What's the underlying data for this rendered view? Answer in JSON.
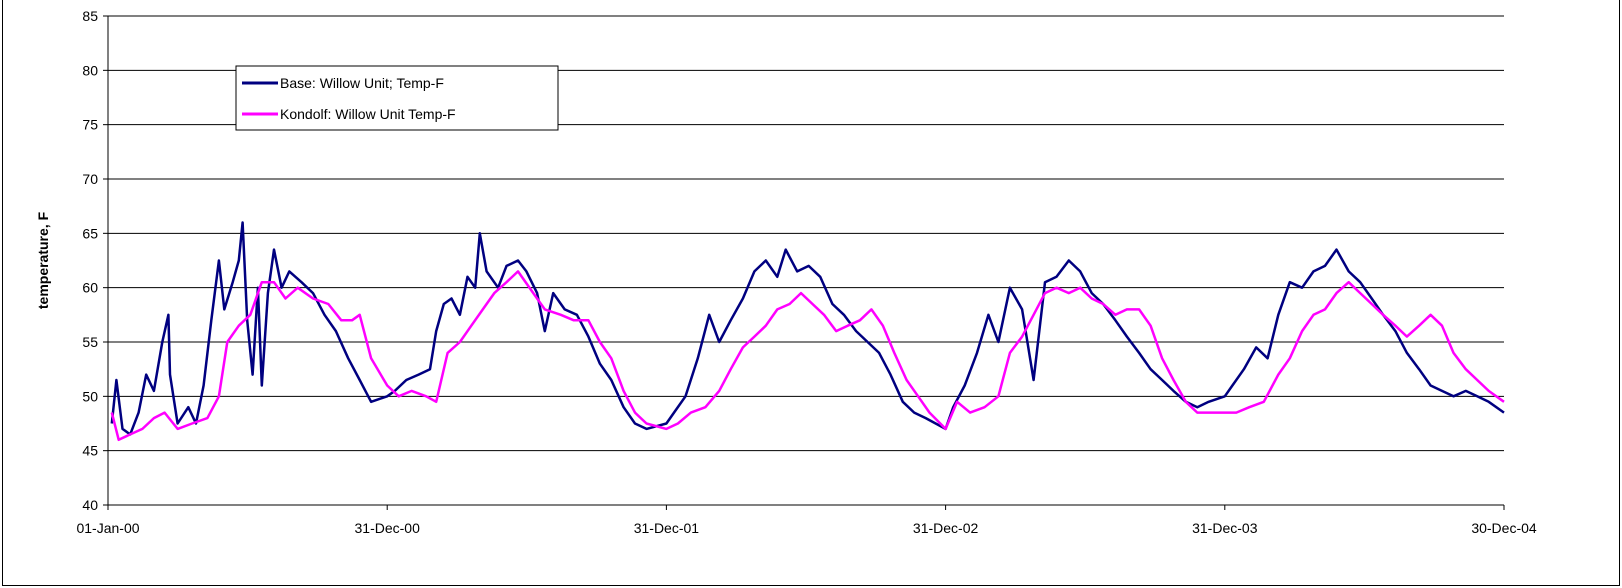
{
  "chart_data": {
    "type": "line",
    "title": "",
    "xlabel": "",
    "ylabel": "temperature, F",
    "ylim": [
      40,
      85
    ],
    "yticks": [
      40,
      45,
      50,
      55,
      60,
      65,
      70,
      75,
      80,
      85
    ],
    "xlim": [
      "2000-01-01",
      "2004-12-30"
    ],
    "xticks": [
      {
        "date": "2000-01-01",
        "label": "01-Jan-00"
      },
      {
        "date": "2000-12-31",
        "label": "31-Dec-00"
      },
      {
        "date": "2001-12-31",
        "label": "31-Dec-01"
      },
      {
        "date": "2002-12-31",
        "label": "31-Dec-02"
      },
      {
        "date": "2003-12-31",
        "label": "31-Dec-03"
      },
      {
        "date": "2004-12-30",
        "label": "30-Dec-04"
      }
    ],
    "grid": "horizontal",
    "legend_position": "top-left",
    "series": [
      {
        "name": "Base:  Willow Unit; Temp-F",
        "color": "#000080",
        "points": [
          [
            "2000-01-06",
            47.5
          ],
          [
            "2000-01-12",
            51.5
          ],
          [
            "2000-01-20",
            47.0
          ],
          [
            "2000-01-30",
            46.5
          ],
          [
            "2000-02-10",
            48.5
          ],
          [
            "2000-02-20",
            52.0
          ],
          [
            "2000-03-01",
            50.5
          ],
          [
            "2000-03-12",
            55.0
          ],
          [
            "2000-03-20",
            57.5
          ],
          [
            "2000-03-22",
            52.0
          ],
          [
            "2000-04-01",
            47.5
          ],
          [
            "2000-04-15",
            49.0
          ],
          [
            "2000-04-25",
            47.5
          ],
          [
            "2000-05-05",
            51.0
          ],
          [
            "2000-05-15",
            57.0
          ],
          [
            "2000-05-25",
            62.5
          ],
          [
            "2000-06-01",
            58.0
          ],
          [
            "2000-06-12",
            60.5
          ],
          [
            "2000-06-20",
            62.5
          ],
          [
            "2000-06-25",
            66.0
          ],
          [
            "2000-07-01",
            57.0
          ],
          [
            "2000-07-08",
            52.0
          ],
          [
            "2000-07-15",
            60.0
          ],
          [
            "2000-07-20",
            51.0
          ],
          [
            "2000-07-28",
            59.5
          ],
          [
            "2000-08-05",
            63.5
          ],
          [
            "2000-08-15",
            60.0
          ],
          [
            "2000-08-25",
            61.5
          ],
          [
            "2000-09-10",
            60.5
          ],
          [
            "2000-09-25",
            59.5
          ],
          [
            "2000-10-10",
            57.5
          ],
          [
            "2000-10-25",
            56.0
          ],
          [
            "2000-11-10",
            53.5
          ],
          [
            "2000-11-25",
            51.5
          ],
          [
            "2000-12-10",
            49.5
          ],
          [
            "2000-12-31",
            50.0
          ],
          [
            "2001-01-10",
            50.5
          ],
          [
            "2001-01-25",
            51.5
          ],
          [
            "2001-02-10",
            52.0
          ],
          [
            "2001-02-25",
            52.5
          ],
          [
            "2001-03-05",
            56.0
          ],
          [
            "2001-03-15",
            58.5
          ],
          [
            "2001-03-25",
            59.0
          ],
          [
            "2001-04-05",
            57.5
          ],
          [
            "2001-04-15",
            61.0
          ],
          [
            "2001-04-25",
            60.0
          ],
          [
            "2001-05-01",
            65.0
          ],
          [
            "2001-05-10",
            61.5
          ],
          [
            "2001-05-25",
            60.0
          ],
          [
            "2001-06-05",
            62.0
          ],
          [
            "2001-06-20",
            62.5
          ],
          [
            "2001-07-01",
            61.5
          ],
          [
            "2001-07-15",
            59.5
          ],
          [
            "2001-07-25",
            56.0
          ],
          [
            "2001-08-05",
            59.5
          ],
          [
            "2001-08-20",
            58.0
          ],
          [
            "2001-09-05",
            57.5
          ],
          [
            "2001-09-20",
            55.5
          ],
          [
            "2001-10-05",
            53.0
          ],
          [
            "2001-10-20",
            51.5
          ],
          [
            "2001-11-05",
            49.0
          ],
          [
            "2001-11-20",
            47.5
          ],
          [
            "2001-12-05",
            47.0
          ],
          [
            "2001-12-31",
            47.5
          ],
          [
            "2002-01-10",
            48.5
          ],
          [
            "2002-01-25",
            50.0
          ],
          [
            "2002-02-10",
            53.5
          ],
          [
            "2002-02-25",
            57.5
          ],
          [
            "2002-03-10",
            55.0
          ],
          [
            "2002-03-25",
            57.0
          ],
          [
            "2002-04-10",
            59.0
          ],
          [
            "2002-04-25",
            61.5
          ],
          [
            "2002-05-10",
            62.5
          ],
          [
            "2002-05-25",
            61.0
          ],
          [
            "2002-06-05",
            63.5
          ],
          [
            "2002-06-20",
            61.5
          ],
          [
            "2002-07-05",
            62.0
          ],
          [
            "2002-07-20",
            61.0
          ],
          [
            "2002-08-05",
            58.5
          ],
          [
            "2002-08-20",
            57.5
          ],
          [
            "2002-09-05",
            56.0
          ],
          [
            "2002-09-20",
            55.0
          ],
          [
            "2002-10-05",
            54.0
          ],
          [
            "2002-10-20",
            52.0
          ],
          [
            "2002-11-05",
            49.5
          ],
          [
            "2002-11-20",
            48.5
          ],
          [
            "2002-12-05",
            48.0
          ],
          [
            "2002-12-31",
            47.0
          ],
          [
            "2003-01-10",
            49.0
          ],
          [
            "2003-01-25",
            51.0
          ],
          [
            "2003-02-10",
            54.0
          ],
          [
            "2003-02-25",
            57.5
          ],
          [
            "2003-03-10",
            55.0
          ],
          [
            "2003-03-25",
            60.0
          ],
          [
            "2003-04-10",
            58.0
          ],
          [
            "2003-04-25",
            51.5
          ],
          [
            "2003-05-10",
            60.5
          ],
          [
            "2003-05-25",
            61.0
          ],
          [
            "2003-06-10",
            62.5
          ],
          [
            "2003-06-25",
            61.5
          ],
          [
            "2003-07-10",
            59.5
          ],
          [
            "2003-07-25",
            58.5
          ],
          [
            "2003-08-10",
            57.0
          ],
          [
            "2003-08-25",
            55.5
          ],
          [
            "2003-09-10",
            54.0
          ],
          [
            "2003-09-25",
            52.5
          ],
          [
            "2003-10-10",
            51.5
          ],
          [
            "2003-10-25",
            50.5
          ],
          [
            "2003-11-10",
            49.5
          ],
          [
            "2003-11-25",
            49.0
          ],
          [
            "2003-12-10",
            49.5
          ],
          [
            "2003-12-31",
            50.0
          ],
          [
            "2004-01-10",
            51.0
          ],
          [
            "2004-01-25",
            52.5
          ],
          [
            "2004-02-10",
            54.5
          ],
          [
            "2004-02-25",
            53.5
          ],
          [
            "2004-03-10",
            57.5
          ],
          [
            "2004-03-25",
            60.5
          ],
          [
            "2004-04-10",
            60.0
          ],
          [
            "2004-04-25",
            61.5
          ],
          [
            "2004-05-10",
            62.0
          ],
          [
            "2004-05-25",
            63.5
          ],
          [
            "2004-06-10",
            61.5
          ],
          [
            "2004-06-25",
            60.5
          ],
          [
            "2004-07-10",
            59.0
          ],
          [
            "2004-07-25",
            57.5
          ],
          [
            "2004-08-10",
            56.0
          ],
          [
            "2004-08-25",
            54.0
          ],
          [
            "2004-09-10",
            52.5
          ],
          [
            "2004-09-25",
            51.0
          ],
          [
            "2004-10-10",
            50.5
          ],
          [
            "2004-10-25",
            50.0
          ],
          [
            "2004-11-10",
            50.5
          ],
          [
            "2004-11-25",
            50.0
          ],
          [
            "2004-12-10",
            49.5
          ],
          [
            "2004-12-30",
            48.5
          ]
        ]
      },
      {
        "name": "Kondolf: Willow Unit Temp-F",
        "color": "#FF00FF",
        "points": [
          [
            "2000-01-06",
            48.5
          ],
          [
            "2000-01-15",
            46.0
          ],
          [
            "2000-01-30",
            46.5
          ],
          [
            "2000-02-15",
            47.0
          ],
          [
            "2000-03-01",
            48.0
          ],
          [
            "2000-03-15",
            48.5
          ],
          [
            "2000-04-01",
            47.0
          ],
          [
            "2000-04-20",
            47.5
          ],
          [
            "2000-05-10",
            48.0
          ],
          [
            "2000-05-25",
            50.0
          ],
          [
            "2000-06-05",
            55.0
          ],
          [
            "2000-06-20",
            56.5
          ],
          [
            "2000-07-05",
            57.5
          ],
          [
            "2000-07-20",
            60.5
          ],
          [
            "2000-08-05",
            60.5
          ],
          [
            "2000-08-20",
            59.0
          ],
          [
            "2000-09-05",
            60.0
          ],
          [
            "2000-09-25",
            59.0
          ],
          [
            "2000-10-15",
            58.5
          ],
          [
            "2000-11-01",
            57.0
          ],
          [
            "2000-11-15",
            57.0
          ],
          [
            "2000-11-25",
            57.5
          ],
          [
            "2000-12-10",
            53.5
          ],
          [
            "2000-12-31",
            51.0
          ],
          [
            "2001-01-15",
            50.0
          ],
          [
            "2001-02-01",
            50.5
          ],
          [
            "2001-02-20",
            50.0
          ],
          [
            "2001-03-05",
            49.5
          ],
          [
            "2001-03-20",
            54.0
          ],
          [
            "2001-04-05",
            55.0
          ],
          [
            "2001-04-20",
            56.5
          ],
          [
            "2001-05-05",
            58.0
          ],
          [
            "2001-05-20",
            59.5
          ],
          [
            "2001-06-05",
            60.5
          ],
          [
            "2001-06-20",
            61.5
          ],
          [
            "2001-07-10",
            59.5
          ],
          [
            "2001-07-25",
            58.0
          ],
          [
            "2001-08-15",
            57.5
          ],
          [
            "2001-09-01",
            57.0
          ],
          [
            "2001-09-20",
            57.0
          ],
          [
            "2001-10-05",
            55.0
          ],
          [
            "2001-10-20",
            53.5
          ],
          [
            "2001-11-05",
            50.5
          ],
          [
            "2001-11-20",
            48.5
          ],
          [
            "2001-12-05",
            47.5
          ],
          [
            "2001-12-31",
            47.0
          ],
          [
            "2002-01-15",
            47.5
          ],
          [
            "2002-02-01",
            48.5
          ],
          [
            "2002-02-20",
            49.0
          ],
          [
            "2002-03-10",
            50.5
          ],
          [
            "2002-03-25",
            52.5
          ],
          [
            "2002-04-10",
            54.5
          ],
          [
            "2002-04-25",
            55.5
          ],
          [
            "2002-05-10",
            56.5
          ],
          [
            "2002-05-25",
            58.0
          ],
          [
            "2002-06-10",
            58.5
          ],
          [
            "2002-06-25",
            59.5
          ],
          [
            "2002-07-10",
            58.5
          ],
          [
            "2002-07-25",
            57.5
          ],
          [
            "2002-08-10",
            56.0
          ],
          [
            "2002-08-25",
            56.5
          ],
          [
            "2002-09-10",
            57.0
          ],
          [
            "2002-09-25",
            58.0
          ],
          [
            "2002-10-10",
            56.5
          ],
          [
            "2002-10-25",
            54.0
          ],
          [
            "2002-11-10",
            51.5
          ],
          [
            "2002-11-25",
            50.0
          ],
          [
            "2002-12-10",
            48.5
          ],
          [
            "2002-12-31",
            47.0
          ],
          [
            "2003-01-15",
            49.5
          ],
          [
            "2003-02-01",
            48.5
          ],
          [
            "2003-02-20",
            49.0
          ],
          [
            "2003-03-10",
            50.0
          ],
          [
            "2003-03-25",
            54.0
          ],
          [
            "2003-04-10",
            55.5
          ],
          [
            "2003-04-25",
            57.5
          ],
          [
            "2003-05-10",
            59.5
          ],
          [
            "2003-05-25",
            60.0
          ],
          [
            "2003-06-10",
            59.5
          ],
          [
            "2003-06-25",
            60.0
          ],
          [
            "2003-07-10",
            59.0
          ],
          [
            "2003-07-25",
            58.5
          ],
          [
            "2003-08-10",
            57.5
          ],
          [
            "2003-08-25",
            58.0
          ],
          [
            "2003-09-10",
            58.0
          ],
          [
            "2003-09-25",
            56.5
          ],
          [
            "2003-10-10",
            53.5
          ],
          [
            "2003-10-25",
            51.5
          ],
          [
            "2003-11-10",
            49.5
          ],
          [
            "2003-11-25",
            48.5
          ],
          [
            "2003-12-10",
            48.5
          ],
          [
            "2003-12-31",
            48.5
          ],
          [
            "2004-01-15",
            48.5
          ],
          [
            "2004-02-01",
            49.0
          ],
          [
            "2004-02-20",
            49.5
          ],
          [
            "2004-03-10",
            52.0
          ],
          [
            "2004-03-25",
            53.5
          ],
          [
            "2004-04-10",
            56.0
          ],
          [
            "2004-04-25",
            57.5
          ],
          [
            "2004-05-10",
            58.0
          ],
          [
            "2004-05-25",
            59.5
          ],
          [
            "2004-06-10",
            60.5
          ],
          [
            "2004-06-25",
            59.5
          ],
          [
            "2004-07-10",
            58.5
          ],
          [
            "2004-07-25",
            57.5
          ],
          [
            "2004-08-10",
            56.5
          ],
          [
            "2004-08-25",
            55.5
          ],
          [
            "2004-09-10",
            56.5
          ],
          [
            "2004-09-25",
            57.5
          ],
          [
            "2004-10-10",
            56.5
          ],
          [
            "2004-10-25",
            54.0
          ],
          [
            "2004-11-10",
            52.5
          ],
          [
            "2004-11-25",
            51.5
          ],
          [
            "2004-12-10",
            50.5
          ],
          [
            "2004-12-30",
            49.5
          ]
        ]
      }
    ]
  }
}
